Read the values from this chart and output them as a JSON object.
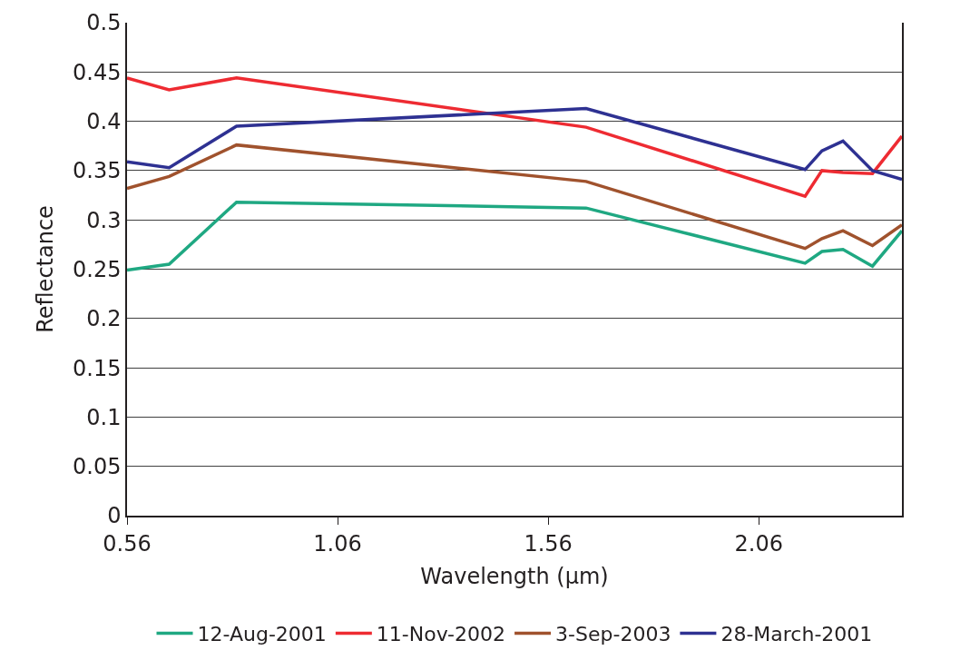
{
  "chart_data": {
    "type": "line",
    "xlabel": "Wavelength (µm)",
    "ylabel": "Reflectance",
    "x": [
      0.56,
      0.66,
      0.82,
      1.65,
      2.17,
      2.21,
      2.26,
      2.33,
      2.4
    ],
    "series": [
      {
        "name": "12-Aug-2001",
        "color": "#1fa882",
        "values": [
          0.249,
          0.255,
          0.318,
          0.312,
          0.256,
          0.268,
          0.27,
          0.253,
          0.289
        ]
      },
      {
        "name": "11-Nov-2002",
        "color": "#ee2b32",
        "values": [
          0.444,
          0.432,
          0.444,
          0.394,
          0.324,
          0.35,
          0.348,
          0.347,
          0.385
        ]
      },
      {
        "name": "3-Sep-2003",
        "color": "#a0522d",
        "values": [
          0.332,
          0.344,
          0.376,
          0.339,
          0.271,
          0.281,
          0.289,
          0.274,
          0.295
        ]
      },
      {
        "name": "28-March-2001",
        "color": "#2e3192",
        "values": [
          0.359,
          0.353,
          0.395,
          0.413,
          0.351,
          0.37,
          0.38,
          0.35,
          0.341
        ]
      }
    ],
    "xlim": [
      0.56,
      2.4
    ],
    "xticks": [
      0.56,
      1.06,
      1.56,
      2.06
    ],
    "ylim": [
      0,
      0.5
    ],
    "yticks": [
      0,
      0.05,
      0.1,
      0.15,
      0.2,
      0.25,
      0.3,
      0.35,
      0.4,
      0.45,
      0.5
    ],
    "grid": "y",
    "legend": "bottom",
    "marker": "none",
    "line_style": "solid"
  }
}
